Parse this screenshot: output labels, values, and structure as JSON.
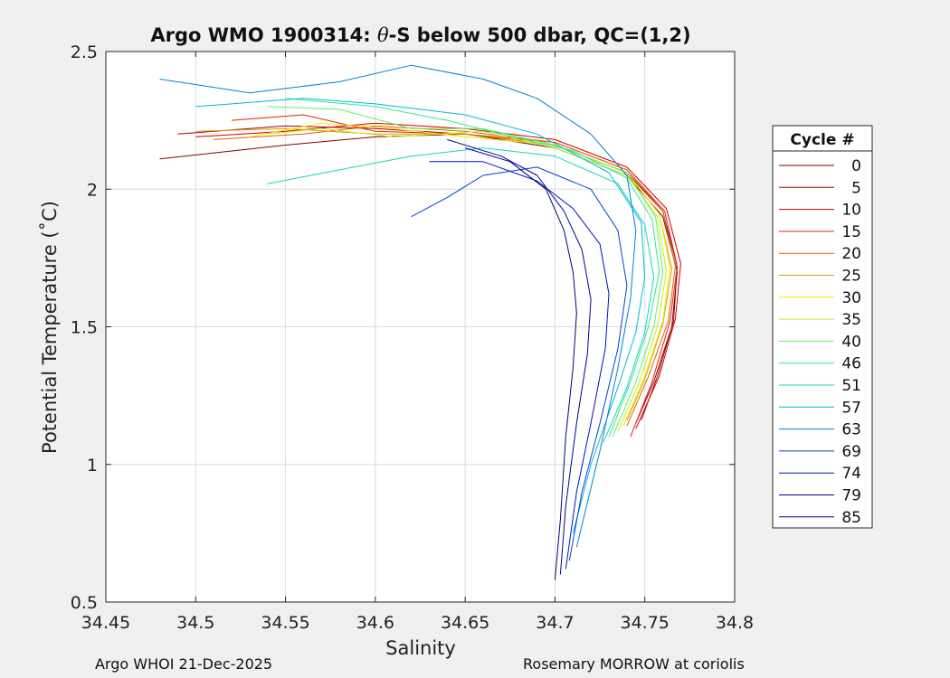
{
  "chart_data": {
    "type": "line",
    "title": "Argo WMO 1900314: θ-S below 500 dbar,  QC=(1,2)",
    "title_parts": {
      "prefix": "Argo WMO 1900314: ",
      "theta": "θ",
      "suffix": "-S below 500 dbar,  QC=(1,2)"
    },
    "xlabel": "Salinity",
    "ylabel": "Potential Temperature (˚C)",
    "xlim": [
      34.45,
      34.8
    ],
    "ylim": [
      0.5,
      2.5
    ],
    "xticks": [
      34.45,
      34.5,
      34.55,
      34.6,
      34.65,
      34.7,
      34.75,
      34.8
    ],
    "xtick_labels": [
      "34.45",
      "34.5",
      "34.55",
      "34.6",
      "34.65",
      "34.7",
      "34.75",
      "34.8"
    ],
    "yticks": [
      0.5,
      1,
      1.5,
      2,
      2.5
    ],
    "ytick_labels": [
      "0.5",
      "1",
      "1.5",
      "2",
      "2.5"
    ],
    "grid": true,
    "legend": {
      "title": "Cycle #",
      "placement": "right",
      "entries": [
        {
          "label": "0",
          "color": "#800000"
        },
        {
          "label": "5",
          "color": "#a80000"
        },
        {
          "label": "10",
          "color": "#d00000"
        },
        {
          "label": "15",
          "color": "#e82000"
        },
        {
          "label": "20",
          "color": "#e06000"
        },
        {
          "label": "25",
          "color": "#d8a000"
        },
        {
          "label": "30",
          "color": "#f0e800"
        },
        {
          "label": "35",
          "color": "#c0f020"
        },
        {
          "label": "40",
          "color": "#60f060"
        },
        {
          "label": "46",
          "color": "#30e890"
        },
        {
          "label": "51",
          "color": "#10d8b8"
        },
        {
          "label": "57",
          "color": "#00b8e0"
        },
        {
          "label": "63",
          "color": "#0080d0"
        },
        {
          "label": "69",
          "color": "#0040d8"
        },
        {
          "label": "74",
          "color": "#0010c0"
        },
        {
          "label": "79",
          "color": "#00009c"
        },
        {
          "label": "85",
          "color": "#000080"
        }
      ]
    },
    "series": [
      {
        "name": "0",
        "color": "#800000",
        "points": [
          [
            34.48,
            2.11
          ],
          [
            34.55,
            2.16
          ],
          [
            34.6,
            2.19
          ],
          [
            34.65,
            2.2
          ],
          [
            34.7,
            2.15
          ],
          [
            34.74,
            2.05
          ],
          [
            34.76,
            1.9
          ],
          [
            34.768,
            1.7
          ],
          [
            34.765,
            1.5
          ],
          [
            34.755,
            1.3
          ],
          [
            34.745,
            1.15
          ]
        ]
      },
      {
        "name": "5",
        "color": "#a80000",
        "points": [
          [
            34.49,
            2.2
          ],
          [
            34.55,
            2.23
          ],
          [
            34.6,
            2.22
          ],
          [
            34.65,
            2.2
          ],
          [
            34.7,
            2.16
          ],
          [
            34.74,
            2.06
          ],
          [
            34.76,
            1.92
          ],
          [
            34.768,
            1.72
          ],
          [
            34.766,
            1.52
          ],
          [
            34.757,
            1.32
          ],
          [
            34.748,
            1.16
          ]
        ]
      },
      {
        "name": "10",
        "color": "#d00000",
        "points": [
          [
            34.5,
            2.19
          ],
          [
            34.55,
            2.21
          ],
          [
            34.6,
            2.24
          ],
          [
            34.65,
            2.22
          ],
          [
            34.7,
            2.18
          ],
          [
            34.74,
            2.08
          ],
          [
            34.762,
            1.93
          ],
          [
            34.77,
            1.73
          ],
          [
            34.767,
            1.53
          ],
          [
            34.758,
            1.32
          ],
          [
            34.745,
            1.13
          ]
        ]
      },
      {
        "name": "15",
        "color": "#e82000",
        "points": [
          [
            34.52,
            2.25
          ],
          [
            34.56,
            2.27
          ],
          [
            34.6,
            2.21
          ],
          [
            34.65,
            2.2
          ],
          [
            34.7,
            2.17
          ],
          [
            34.74,
            2.07
          ],
          [
            34.761,
            1.92
          ],
          [
            34.768,
            1.72
          ],
          [
            34.764,
            1.52
          ],
          [
            34.754,
            1.3
          ],
          [
            34.742,
            1.1
          ]
        ]
      },
      {
        "name": "20",
        "color": "#e06000",
        "points": [
          [
            34.51,
            2.18
          ],
          [
            34.56,
            2.2
          ],
          [
            34.6,
            2.23
          ],
          [
            34.65,
            2.21
          ],
          [
            34.7,
            2.17
          ],
          [
            34.74,
            2.07
          ],
          [
            34.76,
            1.92
          ],
          [
            34.767,
            1.72
          ],
          [
            34.763,
            1.52
          ],
          [
            34.752,
            1.32
          ],
          [
            34.74,
            1.14
          ]
        ]
      },
      {
        "name": "25",
        "color": "#d8a000",
        "points": [
          [
            34.5,
            2.21
          ],
          [
            34.55,
            2.22
          ],
          [
            34.6,
            2.2
          ],
          [
            34.65,
            2.2
          ],
          [
            34.7,
            2.16
          ],
          [
            34.74,
            2.06
          ],
          [
            34.758,
            1.91
          ],
          [
            34.765,
            1.71
          ],
          [
            34.76,
            1.51
          ],
          [
            34.75,
            1.31
          ],
          [
            34.74,
            1.16
          ]
        ]
      },
      {
        "name": "30",
        "color": "#f0e800",
        "points": [
          [
            34.53,
            2.19
          ],
          [
            34.57,
            2.24
          ],
          [
            34.61,
            2.22
          ],
          [
            34.65,
            2.19
          ],
          [
            34.7,
            2.16
          ],
          [
            34.74,
            2.06
          ],
          [
            34.758,
            1.91
          ],
          [
            34.764,
            1.72
          ],
          [
            34.76,
            1.52
          ],
          [
            34.75,
            1.32
          ],
          [
            34.738,
            1.14
          ]
        ]
      },
      {
        "name": "35",
        "color": "#c0f020",
        "points": [
          [
            34.54,
            2.2
          ],
          [
            34.57,
            2.22
          ],
          [
            34.61,
            2.19
          ],
          [
            34.66,
            2.21
          ],
          [
            34.7,
            2.15
          ],
          [
            34.74,
            2.05
          ],
          [
            34.757,
            1.9
          ],
          [
            34.762,
            1.7
          ],
          [
            34.757,
            1.5
          ],
          [
            34.747,
            1.3
          ],
          [
            34.735,
            1.12
          ]
        ]
      },
      {
        "name": "40",
        "color": "#60f060",
        "points": [
          [
            34.54,
            2.3
          ],
          [
            34.58,
            2.29
          ],
          [
            34.62,
            2.22
          ],
          [
            34.66,
            2.22
          ],
          [
            34.7,
            2.16
          ],
          [
            34.74,
            2.06
          ],
          [
            34.756,
            1.9
          ],
          [
            34.76,
            1.7
          ],
          [
            34.755,
            1.5
          ],
          [
            34.745,
            1.3
          ],
          [
            34.732,
            1.1
          ]
        ]
      },
      {
        "name": "46",
        "color": "#30e890",
        "points": [
          [
            34.55,
            2.33
          ],
          [
            34.6,
            2.3
          ],
          [
            34.64,
            2.25
          ],
          [
            34.67,
            2.2
          ],
          [
            34.71,
            2.14
          ],
          [
            34.74,
            2.04
          ],
          [
            34.754,
            1.89
          ],
          [
            34.758,
            1.7
          ],
          [
            34.752,
            1.5
          ],
          [
            34.742,
            1.3
          ],
          [
            34.73,
            1.1
          ]
        ]
      },
      {
        "name": "51",
        "color": "#10d8b8",
        "points": [
          [
            34.54,
            2.02
          ],
          [
            34.58,
            2.07
          ],
          [
            34.62,
            2.12
          ],
          [
            34.66,
            2.15
          ],
          [
            34.7,
            2.12
          ],
          [
            34.735,
            2.02
          ],
          [
            34.75,
            1.87
          ],
          [
            34.755,
            1.68
          ],
          [
            34.75,
            1.48
          ],
          [
            34.74,
            1.28
          ],
          [
            34.727,
            1.08
          ]
        ]
      },
      {
        "name": "57",
        "color": "#00b8e0",
        "points": [
          [
            34.5,
            2.3
          ],
          [
            34.56,
            2.33
          ],
          [
            34.6,
            2.31
          ],
          [
            34.65,
            2.27
          ],
          [
            34.69,
            2.2
          ],
          [
            34.73,
            2.06
          ],
          [
            34.748,
            1.88
          ],
          [
            34.75,
            1.68
          ],
          [
            34.745,
            1.48
          ],
          [
            34.735,
            1.28
          ],
          [
            34.72,
            1.0
          ],
          [
            34.71,
            0.75
          ]
        ]
      },
      {
        "name": "63",
        "color": "#0080d0",
        "points": [
          [
            34.48,
            2.4
          ],
          [
            34.53,
            2.35
          ],
          [
            34.58,
            2.39
          ],
          [
            34.62,
            2.45
          ],
          [
            34.66,
            2.4
          ],
          [
            34.69,
            2.33
          ],
          [
            34.72,
            2.2
          ],
          [
            34.74,
            2.05
          ],
          [
            34.745,
            1.85
          ],
          [
            34.742,
            1.6
          ],
          [
            34.735,
            1.35
          ],
          [
            34.725,
            1.05
          ],
          [
            34.712,
            0.7
          ]
        ]
      },
      {
        "name": "69",
        "color": "#0040d8",
        "points": [
          [
            34.62,
            1.9
          ],
          [
            34.64,
            1.97
          ],
          [
            34.66,
            2.05
          ],
          [
            34.69,
            2.08
          ],
          [
            34.72,
            2.0
          ],
          [
            34.735,
            1.85
          ],
          [
            34.74,
            1.65
          ],
          [
            34.735,
            1.42
          ],
          [
            34.725,
            1.15
          ],
          [
            34.715,
            0.9
          ],
          [
            34.708,
            0.65
          ]
        ]
      },
      {
        "name": "74",
        "color": "#0010c0",
        "points": [
          [
            34.63,
            2.1
          ],
          [
            34.66,
            2.1
          ],
          [
            34.69,
            2.03
          ],
          [
            34.71,
            1.93
          ],
          [
            34.725,
            1.8
          ],
          [
            34.73,
            1.62
          ],
          [
            34.728,
            1.42
          ],
          [
            34.72,
            1.15
          ],
          [
            34.712,
            0.9
          ],
          [
            34.706,
            0.62
          ]
        ]
      },
      {
        "name": "79",
        "color": "#00009c",
        "points": [
          [
            34.64,
            2.18
          ],
          [
            34.67,
            2.12
          ],
          [
            34.69,
            2.05
          ],
          [
            34.705,
            1.92
          ],
          [
            34.715,
            1.78
          ],
          [
            34.72,
            1.6
          ],
          [
            34.718,
            1.4
          ],
          [
            34.712,
            1.15
          ],
          [
            34.706,
            0.85
          ],
          [
            34.703,
            0.6
          ]
        ]
      },
      {
        "name": "85",
        "color": "#000080",
        "points": [
          [
            34.65,
            2.15
          ],
          [
            34.675,
            2.1
          ],
          [
            34.695,
            2.0
          ],
          [
            34.705,
            1.85
          ],
          [
            34.71,
            1.7
          ],
          [
            34.712,
            1.55
          ],
          [
            34.71,
            1.35
          ],
          [
            34.706,
            1.1
          ],
          [
            34.703,
            0.8
          ],
          [
            34.7,
            0.58
          ]
        ]
      }
    ]
  },
  "footer": {
    "left": "Argo WHOI 21-Dec-2025",
    "right": "Rosemary MORROW at coriolis"
  }
}
